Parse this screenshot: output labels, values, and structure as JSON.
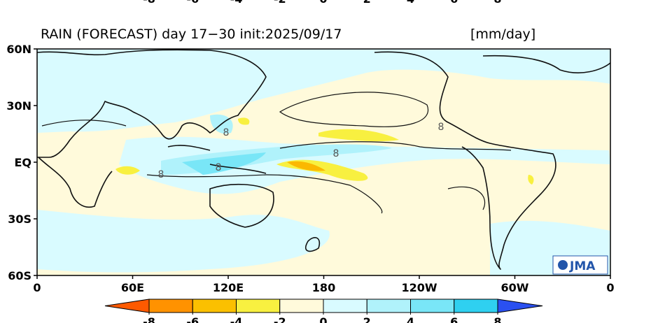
{
  "title": "RAIN (FORECAST) day 17−30 init:2025/09/17",
  "units": "[mm/day]",
  "map": {
    "lat_ticks": [
      {
        "value": 60,
        "label": "60N"
      },
      {
        "value": 30,
        "label": "30N"
      },
      {
        "value": 0,
        "label": "EQ"
      },
      {
        "value": -30,
        "label": "30S"
      },
      {
        "value": -60,
        "label": "60S"
      }
    ],
    "lon_ticks": [
      0,
      {
        "value": 60,
        "label": "60E"
      },
      {
        "value": 120,
        "label": "120E"
      },
      180,
      {
        "value": 240,
        "label": "120W"
      },
      {
        "value": 300,
        "label": "60W"
      },
      {
        "value": 360,
        "label": "0"
      }
    ],
    "latlim": [
      -60,
      60
    ],
    "lonlim": [
      0,
      360
    ],
    "contour_labels": [
      "8",
      "8",
      "8",
      "8",
      "8"
    ],
    "logo": "JMA"
  },
  "colorbar": {
    "ticks": [
      -8,
      -6,
      -4,
      -2,
      0,
      2,
      4,
      6,
      8
    ],
    "colors": [
      "#ff5a00",
      "#ff9200",
      "#fbc000",
      "#f8f040",
      "#fffadb",
      "#d9fbff",
      "#b0f2fb",
      "#79e6f7",
      "#2fd0f0",
      "#18aef0",
      "#2a50f0"
    ]
  }
}
